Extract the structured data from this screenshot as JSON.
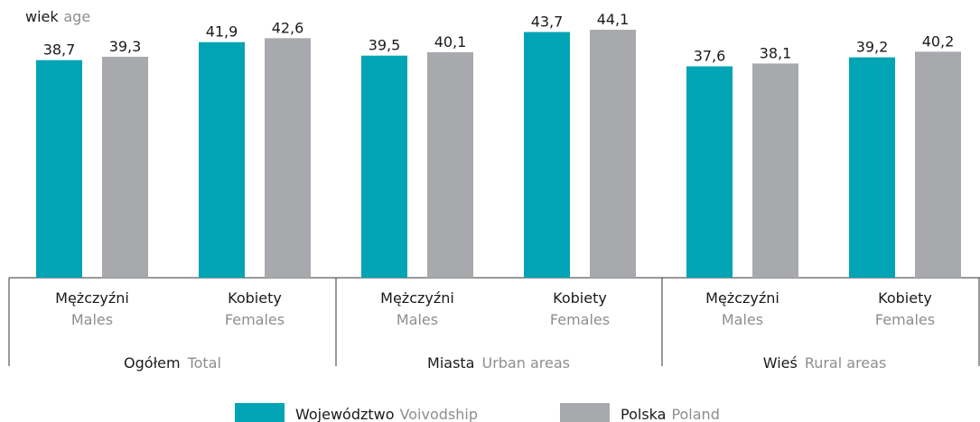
{
  "chart_data": {
    "type": "bar",
    "ylabel": "wiek",
    "ylabel_en": "age",
    "categories": [
      [
        "Mężczyźni",
        "Males"
      ],
      [
        "Kobiety",
        "Females"
      ],
      [
        "Mężczyźni",
        "Males"
      ],
      [
        "Kobiety",
        "Females"
      ],
      [
        "Mężczyźni",
        "Males"
      ],
      [
        "Kobiety",
        "Females"
      ]
    ],
    "groups": [
      [
        "Ogółem",
        "Total"
      ],
      [
        "Miasta",
        "Urban areas"
      ],
      [
        "Wieś",
        "Rural areas"
      ]
    ],
    "series": [
      {
        "name": "Województwo",
        "name_en": "Voivodship",
        "color": "#00a4b4",
        "values": [
          38.7,
          41.9,
          39.5,
          43.7,
          37.6,
          39.2
        ],
        "value_labels": [
          "38,7",
          "41,9",
          "39,5",
          "43,7",
          "37,6",
          "39,2"
        ]
      },
      {
        "name": "Polska",
        "name_en": "Poland",
        "color": "#a7a9ac",
        "values": [
          39.3,
          42.6,
          40.1,
          44.1,
          38.1,
          40.2
        ],
        "value_labels": [
          "39,3",
          "42,6",
          "40,1",
          "44,1",
          "38,1",
          "40,2"
        ]
      }
    ],
    "ylim": [
      0,
      48
    ]
  }
}
